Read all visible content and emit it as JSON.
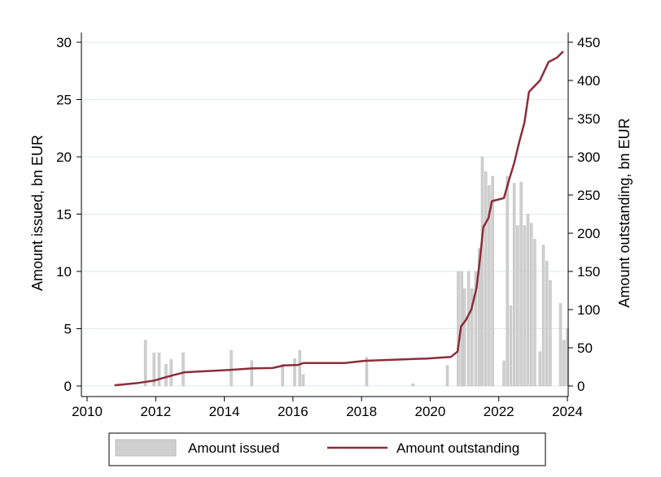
{
  "chart_data": {
    "type": "bar+line",
    "x_axis": {
      "range": [
        2010,
        2024
      ],
      "ticks": [
        2010,
        2012,
        2014,
        2016,
        2018,
        2020,
        2022,
        2024
      ]
    },
    "y_left": {
      "label": "Amount issued, bn EUR",
      "range": [
        0,
        30
      ],
      "ticks": [
        0,
        5,
        10,
        15,
        20,
        25,
        30
      ]
    },
    "y_right": {
      "label": "Amount outstanding, bn EUR",
      "range": [
        0,
        450
      ],
      "ticks": [
        0,
        50,
        100,
        150,
        200,
        250,
        300,
        350,
        400,
        450
      ]
    },
    "grid": "horizontal",
    "legend": {
      "position": "bottom",
      "entries": [
        {
          "label": "Amount issued",
          "key": "issued"
        },
        {
          "label": "Amount outstanding",
          "key": "outstanding"
        }
      ]
    },
    "colors": {
      "bars": "#cfcfcf",
      "line": "#8c2d3a",
      "grid": "#e2e8ec",
      "axis": "#000000"
    },
    "series": [
      {
        "name": "Amount issued",
        "type": "bar",
        "axis": "left",
        "points": [
          {
            "x": 2011.7,
            "y": 4.0
          },
          {
            "x": 2011.95,
            "y": 2.9
          },
          {
            "x": 2012.1,
            "y": 2.9
          },
          {
            "x": 2012.3,
            "y": 1.9
          },
          {
            "x": 2012.45,
            "y": 2.3
          },
          {
            "x": 2012.8,
            "y": 2.9
          },
          {
            "x": 2014.2,
            "y": 3.1
          },
          {
            "x": 2014.8,
            "y": 2.2
          },
          {
            "x": 2015.7,
            "y": 1.9
          },
          {
            "x": 2016.05,
            "y": 2.4
          },
          {
            "x": 2016.2,
            "y": 3.1
          },
          {
            "x": 2016.3,
            "y": 1.0
          },
          {
            "x": 2018.15,
            "y": 2.5
          },
          {
            "x": 2019.5,
            "y": 0.2
          },
          {
            "x": 2020.5,
            "y": 1.8
          },
          {
            "x": 2020.82,
            "y": 10.0
          },
          {
            "x": 2020.92,
            "y": 10.0
          },
          {
            "x": 2021.0,
            "y": 8.5
          },
          {
            "x": 2021.12,
            "y": 10.0
          },
          {
            "x": 2021.22,
            "y": 8.5
          },
          {
            "x": 2021.33,
            "y": 10.0
          },
          {
            "x": 2021.43,
            "y": 12.0
          },
          {
            "x": 2021.52,
            "y": 20.0
          },
          {
            "x": 2021.62,
            "y": 18.7
          },
          {
            "x": 2021.72,
            "y": 17.5
          },
          {
            "x": 2021.82,
            "y": 18.3
          },
          {
            "x": 2022.15,
            "y": 2.2
          },
          {
            "x": 2022.25,
            "y": 18.3
          },
          {
            "x": 2022.35,
            "y": 7.0
          },
          {
            "x": 2022.45,
            "y": 17.7
          },
          {
            "x": 2022.55,
            "y": 14.0
          },
          {
            "x": 2022.65,
            "y": 17.8
          },
          {
            "x": 2022.75,
            "y": 14.0
          },
          {
            "x": 2022.85,
            "y": 15.0
          },
          {
            "x": 2022.95,
            "y": 14.2
          },
          {
            "x": 2023.05,
            "y": 12.8
          },
          {
            "x": 2023.2,
            "y": 3.0
          },
          {
            "x": 2023.3,
            "y": 12.3
          },
          {
            "x": 2023.4,
            "y": 10.9
          },
          {
            "x": 2023.5,
            "y": 9.2
          },
          {
            "x": 2023.8,
            "y": 7.2
          },
          {
            "x": 2023.9,
            "y": 4.0
          },
          {
            "x": 2024.0,
            "y": 5.0
          }
        ]
      },
      {
        "name": "Amount outstanding",
        "type": "line",
        "axis": "right",
        "points": [
          {
            "x": 2010.8,
            "y": 1
          },
          {
            "x": 2011.5,
            "y": 4
          },
          {
            "x": 2011.95,
            "y": 7
          },
          {
            "x": 2012.25,
            "y": 11
          },
          {
            "x": 2012.5,
            "y": 14
          },
          {
            "x": 2012.85,
            "y": 18
          },
          {
            "x": 2014.15,
            "y": 21
          },
          {
            "x": 2014.8,
            "y": 23
          },
          {
            "x": 2015.4,
            "y": 23.5
          },
          {
            "x": 2015.75,
            "y": 27
          },
          {
            "x": 2016.15,
            "y": 27.5
          },
          {
            "x": 2016.3,
            "y": 30
          },
          {
            "x": 2017.5,
            "y": 30
          },
          {
            "x": 2018.1,
            "y": 33
          },
          {
            "x": 2019.9,
            "y": 36
          },
          {
            "x": 2020.6,
            "y": 38
          },
          {
            "x": 2020.8,
            "y": 45
          },
          {
            "x": 2020.9,
            "y": 78
          },
          {
            "x": 2021.05,
            "y": 87
          },
          {
            "x": 2021.2,
            "y": 100
          },
          {
            "x": 2021.35,
            "y": 128
          },
          {
            "x": 2021.45,
            "y": 165
          },
          {
            "x": 2021.55,
            "y": 208
          },
          {
            "x": 2021.7,
            "y": 220
          },
          {
            "x": 2021.8,
            "y": 242
          },
          {
            "x": 2022.15,
            "y": 246
          },
          {
            "x": 2022.3,
            "y": 270
          },
          {
            "x": 2022.45,
            "y": 292
          },
          {
            "x": 2022.6,
            "y": 320
          },
          {
            "x": 2022.75,
            "y": 345
          },
          {
            "x": 2022.88,
            "y": 385
          },
          {
            "x": 2023.2,
            "y": 400
          },
          {
            "x": 2023.45,
            "y": 424
          },
          {
            "x": 2023.7,
            "y": 430
          },
          {
            "x": 2023.88,
            "y": 438
          }
        ]
      }
    ]
  }
}
